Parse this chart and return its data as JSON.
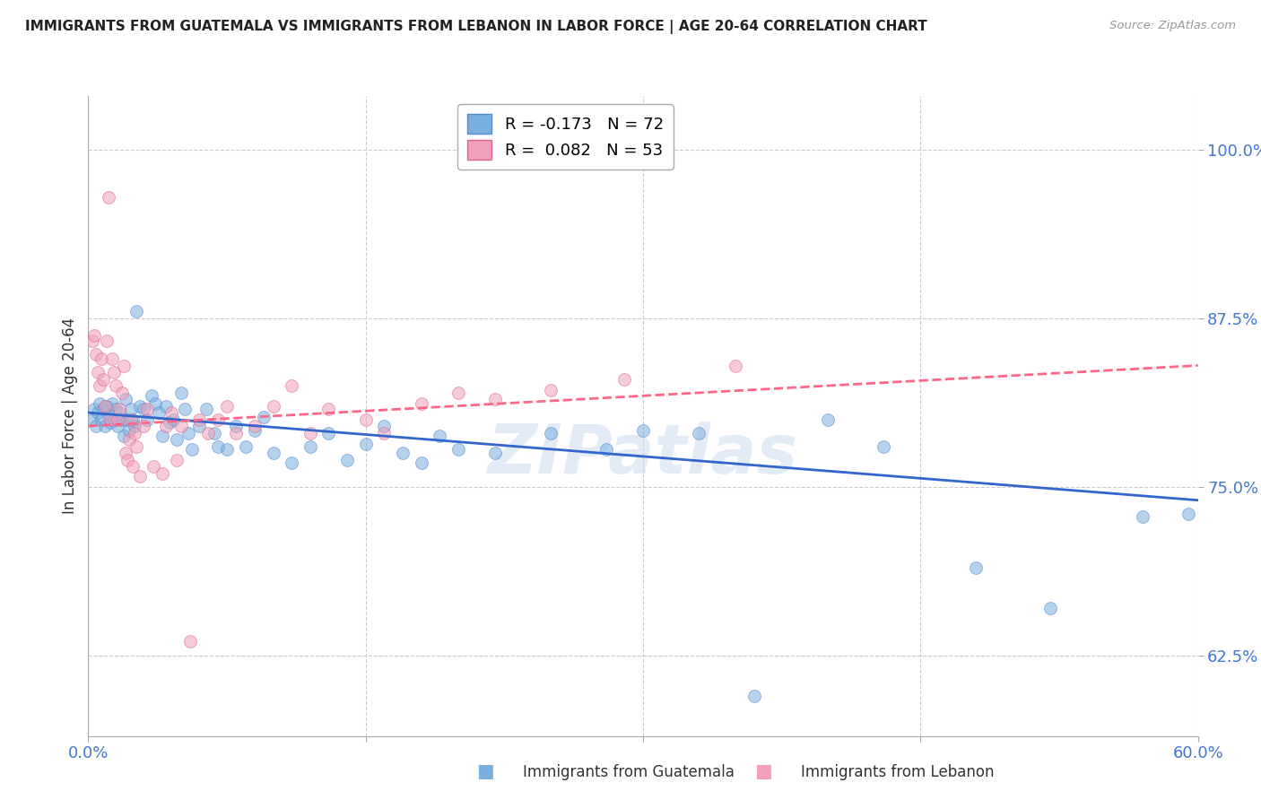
{
  "title": "IMMIGRANTS FROM GUATEMALA VS IMMIGRANTS FROM LEBANON IN LABOR FORCE | AGE 20-64 CORRELATION CHART",
  "source": "Source: ZipAtlas.com",
  "ylabel_label": "In Labor Force | Age 20-64",
  "ylabel_ticks": [
    62.5,
    75.0,
    87.5,
    100.0
  ],
  "ylabel_tick_labels": [
    "62.5%",
    "75.0%",
    "87.5%",
    "100.0%"
  ],
  "xlim": [
    0.0,
    0.6
  ],
  "ylim": [
    0.565,
    1.04
  ],
  "background_color": "#ffffff",
  "grid_color": "#cccccc",
  "title_color": "#222222",
  "tick_label_color": "#4477cc",
  "source_color": "#999999",
  "ylabel_color": "#333333",
  "legend_entries": [
    {
      "label": "R = -0.173   N = 72",
      "color": "#7ab0e0"
    },
    {
      "label": "R =  0.082   N = 53",
      "color": "#f0a0b8"
    }
  ],
  "watermark": "ZIPatlas",
  "guatemala_scatter": [
    [
      0.002,
      0.8
    ],
    [
      0.003,
      0.808
    ],
    [
      0.004,
      0.795
    ],
    [
      0.005,
      0.805
    ],
    [
      0.006,
      0.812
    ],
    [
      0.007,
      0.8
    ],
    [
      0.008,
      0.808
    ],
    [
      0.009,
      0.795
    ],
    [
      0.01,
      0.81
    ],
    [
      0.011,
      0.803
    ],
    [
      0.012,
      0.798
    ],
    [
      0.013,
      0.812
    ],
    [
      0.014,
      0.8
    ],
    [
      0.015,
      0.808
    ],
    [
      0.016,
      0.795
    ],
    [
      0.017,
      0.805
    ],
    [
      0.018,
      0.8
    ],
    [
      0.019,
      0.788
    ],
    [
      0.02,
      0.815
    ],
    [
      0.021,
      0.8
    ],
    [
      0.022,
      0.792
    ],
    [
      0.023,
      0.808
    ],
    [
      0.024,
      0.8
    ],
    [
      0.025,
      0.795
    ],
    [
      0.026,
      0.88
    ],
    [
      0.028,
      0.81
    ],
    [
      0.03,
      0.808
    ],
    [
      0.032,
      0.8
    ],
    [
      0.034,
      0.818
    ],
    [
      0.036,
      0.812
    ],
    [
      0.038,
      0.805
    ],
    [
      0.04,
      0.788
    ],
    [
      0.042,
      0.81
    ],
    [
      0.044,
      0.798
    ],
    [
      0.046,
      0.8
    ],
    [
      0.048,
      0.785
    ],
    [
      0.05,
      0.82
    ],
    [
      0.052,
      0.808
    ],
    [
      0.054,
      0.79
    ],
    [
      0.056,
      0.778
    ],
    [
      0.06,
      0.795
    ],
    [
      0.064,
      0.808
    ],
    [
      0.068,
      0.79
    ],
    [
      0.07,
      0.78
    ],
    [
      0.075,
      0.778
    ],
    [
      0.08,
      0.795
    ],
    [
      0.085,
      0.78
    ],
    [
      0.09,
      0.792
    ],
    [
      0.095,
      0.802
    ],
    [
      0.1,
      0.775
    ],
    [
      0.11,
      0.768
    ],
    [
      0.12,
      0.78
    ],
    [
      0.13,
      0.79
    ],
    [
      0.14,
      0.77
    ],
    [
      0.15,
      0.782
    ],
    [
      0.16,
      0.795
    ],
    [
      0.17,
      0.775
    ],
    [
      0.18,
      0.768
    ],
    [
      0.19,
      0.788
    ],
    [
      0.2,
      0.778
    ],
    [
      0.22,
      0.775
    ],
    [
      0.25,
      0.79
    ],
    [
      0.28,
      0.778
    ],
    [
      0.3,
      0.792
    ],
    [
      0.33,
      0.79
    ],
    [
      0.36,
      0.595
    ],
    [
      0.4,
      0.8
    ],
    [
      0.43,
      0.78
    ],
    [
      0.48,
      0.69
    ],
    [
      0.52,
      0.66
    ],
    [
      0.57,
      0.728
    ],
    [
      0.595,
      0.73
    ]
  ],
  "lebanon_scatter": [
    [
      0.002,
      0.858
    ],
    [
      0.003,
      0.862
    ],
    [
      0.004,
      0.848
    ],
    [
      0.005,
      0.835
    ],
    [
      0.006,
      0.825
    ],
    [
      0.007,
      0.845
    ],
    [
      0.008,
      0.83
    ],
    [
      0.009,
      0.81
    ],
    [
      0.01,
      0.858
    ],
    [
      0.011,
      0.965
    ],
    [
      0.012,
      0.8
    ],
    [
      0.013,
      0.845
    ],
    [
      0.014,
      0.835
    ],
    [
      0.015,
      0.825
    ],
    [
      0.016,
      0.8
    ],
    [
      0.017,
      0.808
    ],
    [
      0.018,
      0.82
    ],
    [
      0.019,
      0.84
    ],
    [
      0.02,
      0.775
    ],
    [
      0.021,
      0.77
    ],
    [
      0.022,
      0.785
    ],
    [
      0.023,
      0.8
    ],
    [
      0.024,
      0.765
    ],
    [
      0.025,
      0.79
    ],
    [
      0.026,
      0.78
    ],
    [
      0.028,
      0.758
    ],
    [
      0.03,
      0.795
    ],
    [
      0.032,
      0.808
    ],
    [
      0.035,
      0.765
    ],
    [
      0.04,
      0.76
    ],
    [
      0.042,
      0.795
    ],
    [
      0.045,
      0.805
    ],
    [
      0.048,
      0.77
    ],
    [
      0.05,
      0.795
    ],
    [
      0.055,
      0.635
    ],
    [
      0.06,
      0.8
    ],
    [
      0.065,
      0.79
    ],
    [
      0.07,
      0.8
    ],
    [
      0.075,
      0.81
    ],
    [
      0.08,
      0.79
    ],
    [
      0.09,
      0.795
    ],
    [
      0.1,
      0.81
    ],
    [
      0.11,
      0.825
    ],
    [
      0.12,
      0.79
    ],
    [
      0.13,
      0.808
    ],
    [
      0.15,
      0.8
    ],
    [
      0.16,
      0.79
    ],
    [
      0.18,
      0.812
    ],
    [
      0.2,
      0.82
    ],
    [
      0.22,
      0.815
    ],
    [
      0.25,
      0.822
    ],
    [
      0.29,
      0.83
    ],
    [
      0.35,
      0.84
    ]
  ],
  "guatemala_line": {
    "x": [
      0.0,
      0.6
    ],
    "y": [
      0.805,
      0.74
    ]
  },
  "lebanon_line": {
    "x": [
      0.0,
      0.6
    ],
    "y": [
      0.795,
      0.84
    ]
  },
  "guatemala_line_color": "#3366cc",
  "lebanon_line_color": "#ff6688",
  "dot_size_guatemala": 100,
  "dot_size_lebanon": 100,
  "dot_alpha": 0.55,
  "dot_color_guatemala": "#7ab0e0",
  "dot_color_lebanon": "#f0a0b8",
  "dot_edgecolor_guatemala": "#5588cc",
  "dot_edgecolor_lebanon": "#dd6688",
  "xtick_positions": [
    0.0,
    0.15,
    0.3,
    0.45,
    0.6
  ],
  "xtick_labels": [
    "0.0%",
    "",
    "",
    "",
    "60.0%"
  ]
}
